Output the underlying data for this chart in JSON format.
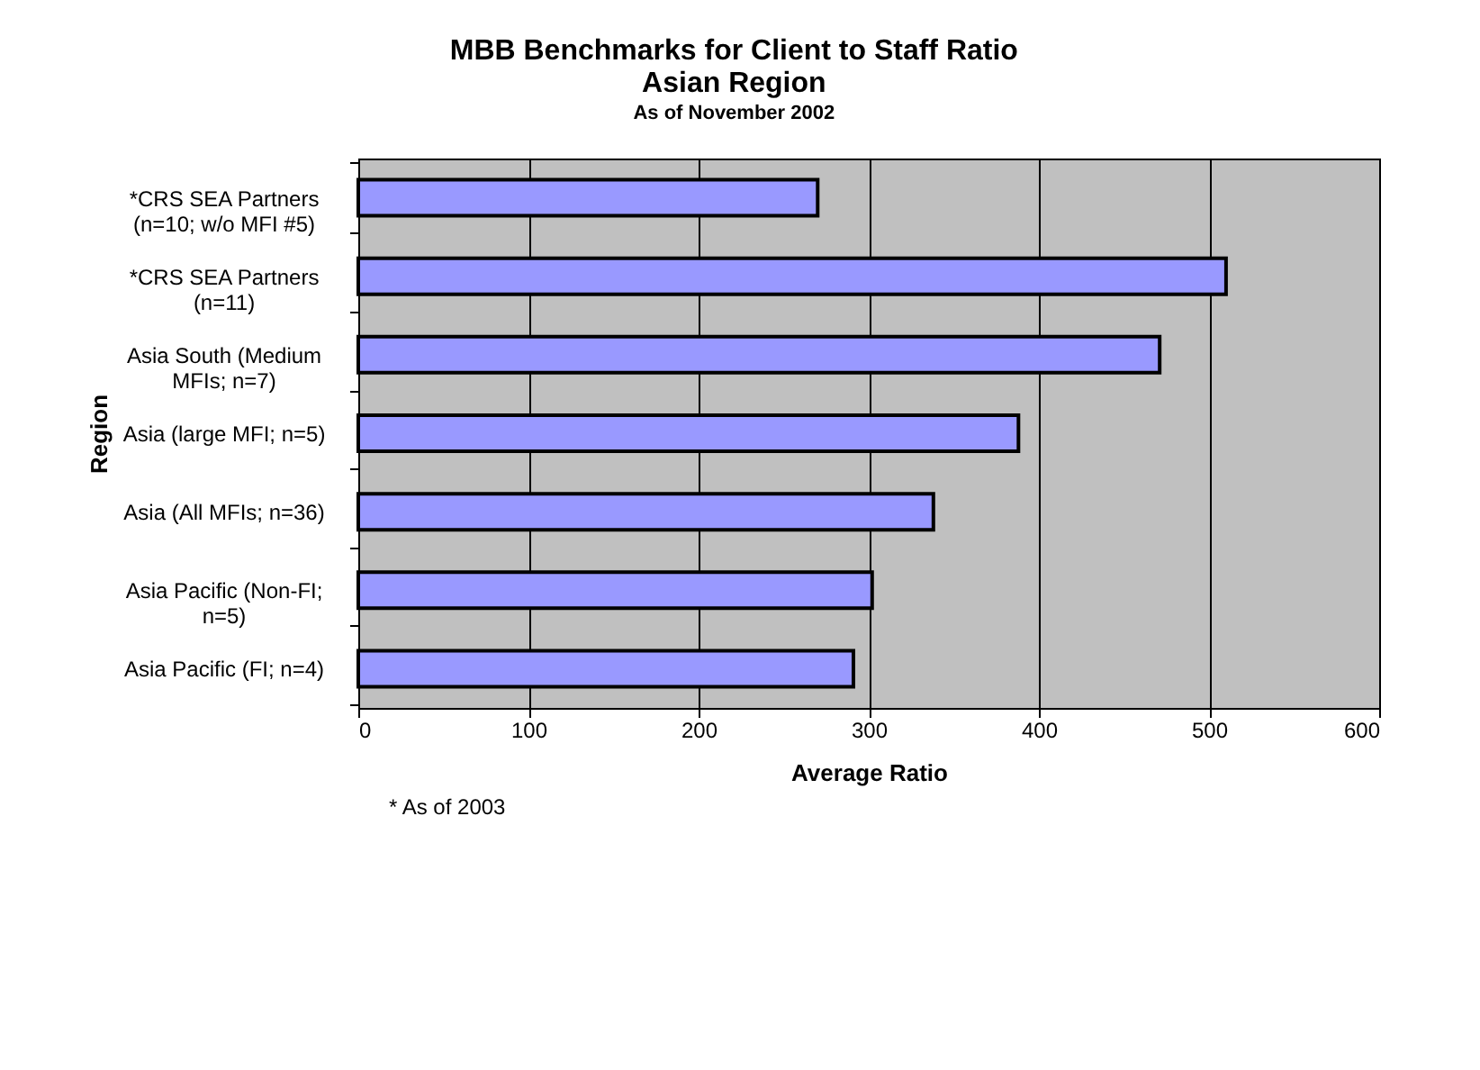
{
  "chart_data": {
    "type": "bar",
    "orientation": "horizontal",
    "title": "MBB Benchmarks for Client to Staff Ratio",
    "subtitle": "Asian Region",
    "annotations": [
      "As of November 2002",
      "* As of 2003"
    ],
    "xlabel": "Average Ratio",
    "ylabel": "Region",
    "categories": [
      "*CRS SEA Partners (n=10; w/o MFI #5)",
      "*CRS SEA Partners (n=11)",
      "Asia South (Medium MFIs; n=7)",
      "Asia (large MFI; n=5)",
      "Asia (All MFIs; n=36)",
      "Asia Pacific (Non-FI; n=5)",
      "Asia Pacific (FI; n=4)"
    ],
    "values": [
      270,
      510,
      471,
      388,
      338,
      302,
      291
    ],
    "color": "#9999ff",
    "xlim": [
      0,
      600
    ],
    "xticks": [
      0,
      100,
      200,
      300,
      400,
      500,
      600
    ],
    "grid": "x"
  }
}
